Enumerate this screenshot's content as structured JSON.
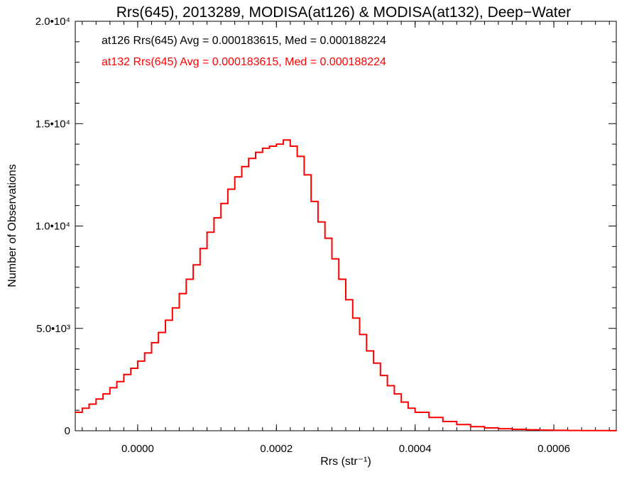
{
  "chart_data": {
    "type": "line",
    "title": "Rrs(645), 2013289, MODISA(at126) & MODISA(at132), Deep−Water",
    "xlabel": "Rrs (str⁻¹)",
    "ylabel": "Number of Observations",
    "xlim": [
      -9e-05,
      0.00069
    ],
    "ylim": [
      0,
      20000
    ],
    "x_ticks": [
      {
        "value": 0.0,
        "label": "0.0000"
      },
      {
        "value": 0.0002,
        "label": "0.0002"
      },
      {
        "value": 0.0004,
        "label": "0.0004"
      },
      {
        "value": 0.0006,
        "label": "0.0006"
      }
    ],
    "y_ticks": [
      {
        "value": 0,
        "label": "0"
      },
      {
        "value": 5000,
        "label": "5.0•10³"
      },
      {
        "value": 10000,
        "label": "1.0•10⁴"
      },
      {
        "value": 15000,
        "label": "1.5•10⁴"
      },
      {
        "value": 20000,
        "label": "2.0•10⁴"
      }
    ],
    "grid": false,
    "annotations": [
      {
        "text": "at126 Rrs(645) Avg = 0.000183615, Med = 0.000188224",
        "color": "#000000"
      },
      {
        "text": "at132 Rrs(645) Avg = 0.000183615, Med = 0.000188224",
        "color": "#ff0000"
      }
    ],
    "series": [
      {
        "color": "#ff0000",
        "x": [
          -9e-05,
          -8e-05,
          -7e-05,
          -6e-05,
          -5e-05,
          -4e-05,
          -3e-05,
          -2e-05,
          -1e-05,
          0.0,
          1e-05,
          2e-05,
          3e-05,
          4e-05,
          5e-05,
          6e-05,
          7e-05,
          8e-05,
          9e-05,
          0.0001,
          0.00011,
          0.00012,
          0.00013,
          0.00014,
          0.00015,
          0.00016,
          0.00017,
          0.00018,
          0.00019,
          0.0002,
          0.00021,
          0.00022,
          0.00023,
          0.00024,
          0.00025,
          0.00026,
          0.00027,
          0.00028,
          0.00029,
          0.0003,
          0.00031,
          0.00032,
          0.00033,
          0.00034,
          0.00035,
          0.00036,
          0.00037,
          0.00038,
          0.00039,
          0.0004,
          0.00042,
          0.00044,
          0.00046,
          0.00048,
          0.0005,
          0.00052,
          0.00054,
          0.00056,
          0.00058,
          0.0006,
          0.00062,
          0.00064,
          0.00066,
          0.00068,
          0.00069
        ],
        "values": [
          900,
          1100,
          1300,
          1550,
          1800,
          2100,
          2400,
          2750,
          3050,
          3400,
          3800,
          4300,
          4800,
          5400,
          6000,
          6700,
          7400,
          8100,
          8900,
          9700,
          10400,
          11100,
          11800,
          12400,
          12900,
          13300,
          13600,
          13800,
          13900,
          14000,
          14200,
          13900,
          13400,
          12500,
          11200,
          10200,
          9400,
          8400,
          7400,
          6400,
          5500,
          4700,
          3900,
          3300,
          2700,
          2200,
          1800,
          1400,
          1100,
          900,
          650,
          450,
          300,
          200,
          140,
          100,
          70,
          50,
          30,
          20,
          15,
          10,
          6,
          3,
          0
        ]
      }
    ]
  }
}
